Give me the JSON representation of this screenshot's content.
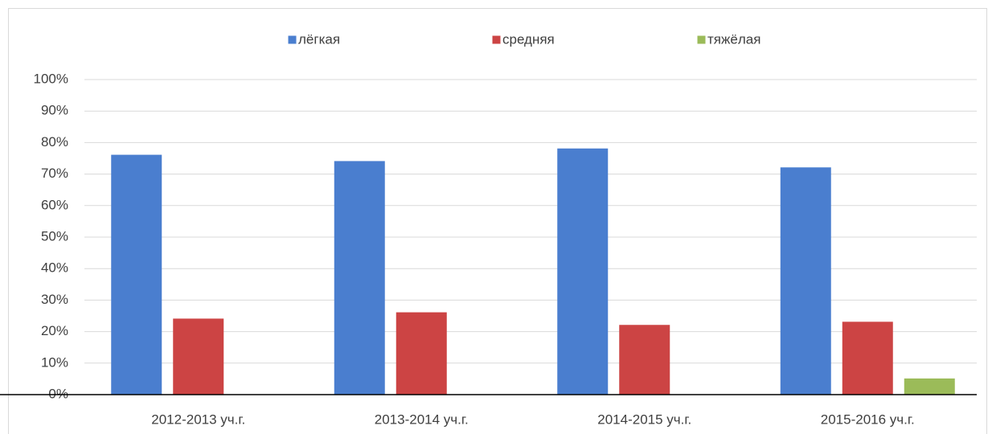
{
  "chart_data": {
    "type": "bar",
    "categories": [
      "2012-2013 уч.г.",
      "2013-2014 уч.г.",
      "2014-2015 уч.г.",
      "2015-2016 уч.г."
    ],
    "series": [
      {
        "name": "лёгкая",
        "color": "#4a7ecf",
        "values": [
          76,
          74,
          78,
          72
        ]
      },
      {
        "name": "средняя",
        "color": "#cc4444",
        "values": [
          24,
          26,
          22,
          23
        ]
      },
      {
        "name": "тяжёлая",
        "color": "#9bbb59",
        "values": [
          null,
          null,
          null,
          5
        ]
      }
    ],
    "ylim": [
      0,
      100
    ],
    "yticks": [
      {
        "value": 0,
        "label": "0%"
      },
      {
        "value": 10,
        "label": "10%"
      },
      {
        "value": 20,
        "label": "20%"
      },
      {
        "value": 30,
        "label": "30%"
      },
      {
        "value": 40,
        "label": "40%"
      },
      {
        "value": 50,
        "label": "50%"
      },
      {
        "value": 60,
        "label": "60%"
      },
      {
        "value": 70,
        "label": "70%"
      },
      {
        "value": 80,
        "label": "80%"
      },
      {
        "value": 90,
        "label": "90%"
      },
      {
        "value": 100,
        "label": "100%"
      }
    ],
    "grid": true,
    "legend": "top"
  }
}
